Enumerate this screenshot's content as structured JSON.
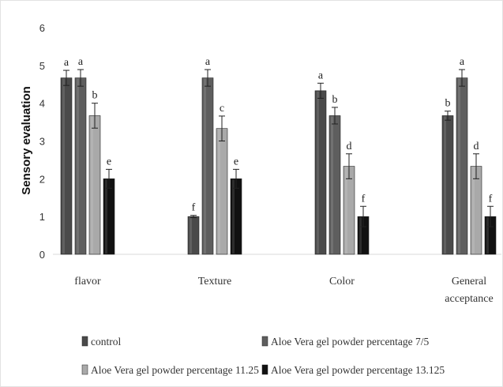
{
  "chart_data": {
    "type": "bar",
    "title": "",
    "xlabel": "",
    "ylabel": "Sensory evaluation",
    "ylim": [
      0,
      6
    ],
    "yticks": [
      "0",
      "1",
      "2",
      "3",
      "4",
      "5",
      "6"
    ],
    "grid": false,
    "legend_position": "bottom",
    "categories": [
      [
        "flavor"
      ],
      [
        "Texture"
      ],
      [
        "Color"
      ],
      [
        "General",
        "acceptance"
      ]
    ],
    "series": [
      {
        "name": "control",
        "color": "#4a4a4a",
        "values": [
          4.67,
          1.0,
          4.33,
          3.67
        ],
        "errors": [
          0.2,
          0.03,
          0.2,
          0.12
        ],
        "labels": [
          "a",
          "f",
          "a",
          "b"
        ]
      },
      {
        "name": "Aloe Vera gel powder percentage 7/5",
        "color": "#5e5e5e",
        "values": [
          4.67,
          4.67,
          3.67,
          4.67
        ],
        "errors": [
          0.22,
          0.22,
          0.22,
          0.22
        ],
        "labels": [
          "a",
          "a",
          "b",
          "a"
        ]
      },
      {
        "name": "Aloe Vera gel powder percentage 11.25",
        "color": "#a9a9a9",
        "values": [
          3.67,
          3.33,
          2.33,
          2.33
        ],
        "errors": [
          0.33,
          0.33,
          0.33,
          0.33
        ],
        "labels": [
          "b",
          "c",
          "d",
          "d"
        ]
      },
      {
        "name": "Aloe Vera gel powder percentage 13.125",
        "color": "#111111",
        "values": [
          2.0,
          2.0,
          1.0,
          1.0
        ],
        "errors": [
          0.25,
          0.25,
          0.27,
          0.27
        ],
        "labels": [
          "e",
          "e",
          "f",
          "f"
        ]
      }
    ]
  }
}
